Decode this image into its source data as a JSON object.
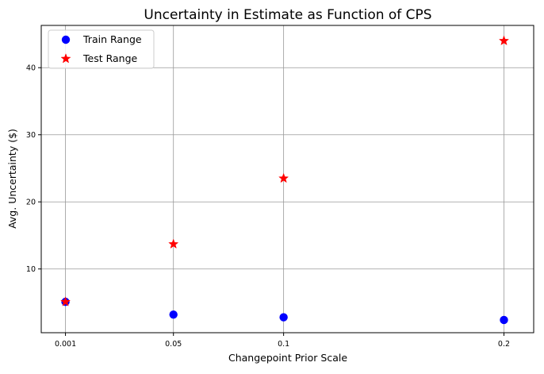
{
  "chart_data": {
    "type": "scatter",
    "title": "Uncertainty in Estimate as Function of CPS",
    "xlabel": "Changepoint Prior Scale",
    "ylabel": "Avg. Uncertainty ($)",
    "x_ticks": [
      0.001,
      0.05,
      0.1,
      0.2
    ],
    "x_tick_labels": [
      "0.001",
      "0.05",
      "0.1",
      "0.2"
    ],
    "y_ticks": [
      10,
      20,
      30,
      40
    ],
    "y_tick_labels": [
      "10",
      "20",
      "30",
      "40"
    ],
    "xlim": [
      -0.01,
      0.2135
    ],
    "ylim": [
      0.5,
      46.3
    ],
    "grid": true,
    "legend_position": "top-left",
    "series": [
      {
        "name": "Train Range",
        "marker": "circle",
        "color": "#0000ff",
        "x": [
          0.001,
          0.05,
          0.1,
          0.2
        ],
        "y": [
          5.1,
          3.2,
          2.8,
          2.4
        ]
      },
      {
        "name": "Test Range",
        "marker": "star",
        "color": "#ff0000",
        "x": [
          0.001,
          0.05,
          0.1,
          0.2
        ],
        "y": [
          5.1,
          13.7,
          23.5,
          44.0
        ]
      }
    ]
  }
}
